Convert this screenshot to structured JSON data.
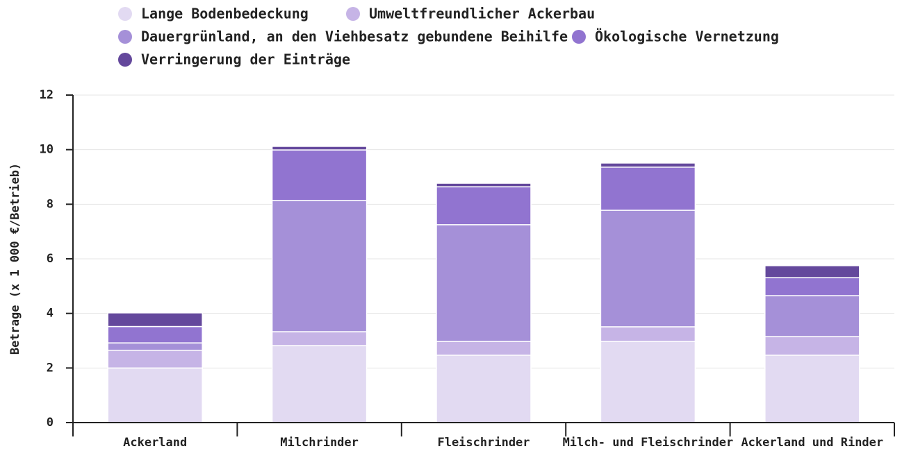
{
  "chart_data": {
    "type": "stacked_bar",
    "y_label": "Betrage (x 1 000 €/Betrieb)",
    "categories": [
      "Ackerland",
      "Milchrinder",
      "Fleischrinder",
      "Milch- und Fleischrinder",
      "Ackerland und Rinder"
    ],
    "series": [
      {
        "name": "Lange Bodenbedeckung",
        "color": "#e2daf2",
        "values": [
          2.0,
          2.82,
          2.47,
          2.97,
          2.47
        ]
      },
      {
        "name": "Umweltfreundlicher Ackerbau",
        "color": "#c6b4e6",
        "values": [
          0.65,
          0.51,
          0.5,
          0.54,
          0.68
        ]
      },
      {
        "name": "Dauergrünland, an den Viehbesatz gebundene Beihilfe",
        "color": "#a590d8",
        "values": [
          0.27,
          4.81,
          4.28,
          4.27,
          1.5
        ]
      },
      {
        "name": "Ökologische Vernetzung",
        "color": "#9174d0",
        "values": [
          0.6,
          1.85,
          1.39,
          1.58,
          0.66
        ]
      },
      {
        "name": "Verringerung der Einträge",
        "color": "#64489c",
        "values": [
          0.5,
          0.13,
          0.13,
          0.15,
          0.44
        ]
      }
    ],
    "ylim": [
      0,
      12
    ],
    "yticks": [
      0,
      2,
      4,
      6,
      8,
      10,
      12
    ],
    "grid": true
  }
}
